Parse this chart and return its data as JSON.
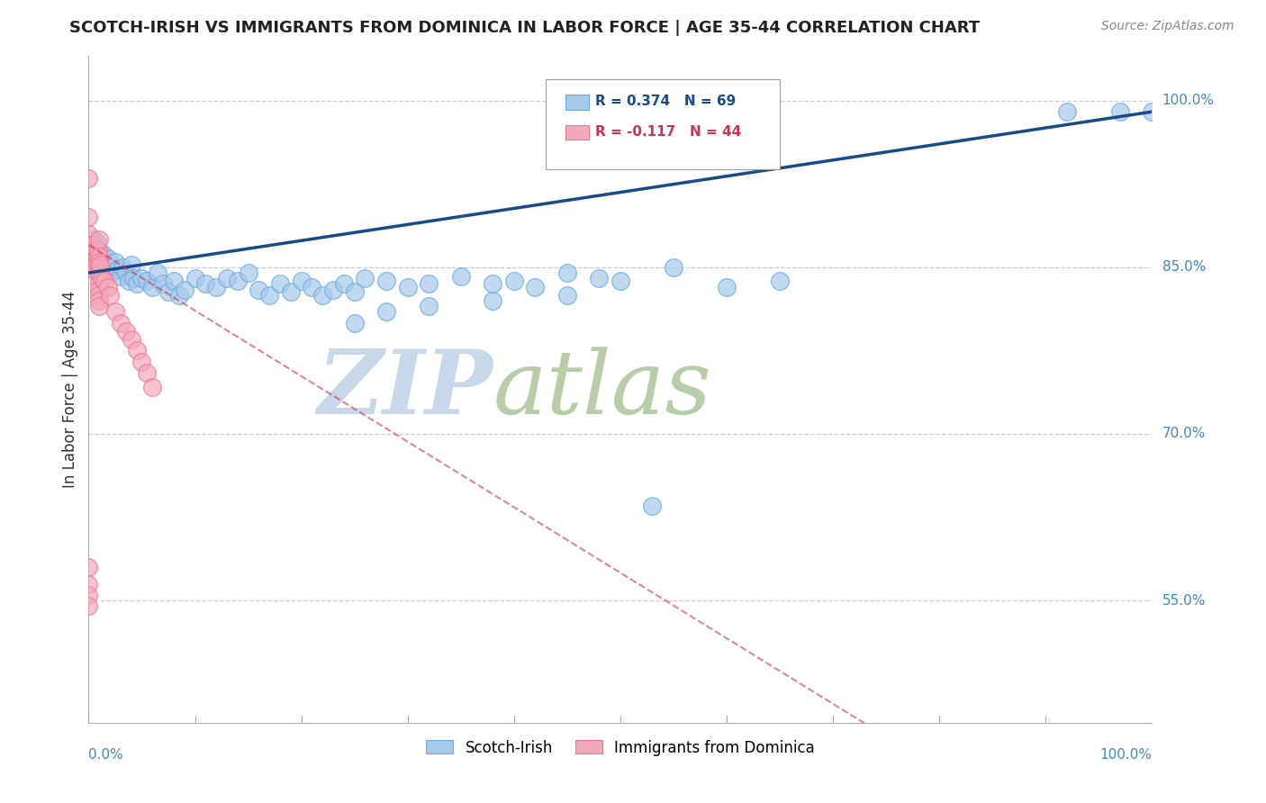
{
  "title": "SCOTCH-IRISH VS IMMIGRANTS FROM DOMINICA IN LABOR FORCE | AGE 35-44 CORRELATION CHART",
  "source": "Source: ZipAtlas.com",
  "ylabel": "In Labor Force | Age 35-44",
  "legend_blue_r": "R = 0.374",
  "legend_blue_n": "N = 69",
  "legend_pink_r": "R = -0.117",
  "legend_pink_n": "N = 44",
  "blue_color": "#a8c8e8",
  "blue_edge": "#6aabdb",
  "pink_color": "#f4a8bc",
  "pink_edge": "#e87898",
  "line_blue_color": "#1a4a8a",
  "line_pink_color": "#cc3355",
  "watermark_zip_color": "#c8d8e8",
  "watermark_atlas_color": "#b8ccaa",
  "grid_color": "#cccccc",
  "right_label_color": "#4488bb",
  "title_color": "#222222",
  "source_color": "#888888",
  "blue_x": [
    0.003,
    0.005,
    0.007,
    0.008,
    0.009,
    0.01,
    0.012,
    0.013,
    0.015,
    0.018,
    0.02,
    0.022,
    0.025,
    0.028,
    0.03,
    0.032,
    0.035,
    0.038,
    0.04,
    0.042,
    0.045,
    0.05,
    0.055,
    0.06,
    0.065,
    0.07,
    0.075,
    0.08,
    0.085,
    0.09,
    0.1,
    0.11,
    0.12,
    0.13,
    0.14,
    0.15,
    0.16,
    0.17,
    0.18,
    0.19,
    0.2,
    0.21,
    0.22,
    0.23,
    0.24,
    0.25,
    0.26,
    0.28,
    0.3,
    0.32,
    0.35,
    0.38,
    0.4,
    0.42,
    0.45,
    0.48,
    0.5,
    0.55,
    0.6,
    0.65,
    0.25,
    0.28,
    0.32,
    0.38,
    0.45,
    0.53,
    0.92,
    0.97,
    1.0
  ],
  "blue_y": [
    0.87,
    0.875,
    0.868,
    0.872,
    0.865,
    0.86,
    0.858,
    0.862,
    0.855,
    0.858,
    0.85,
    0.845,
    0.855,
    0.848,
    0.842,
    0.85,
    0.845,
    0.838,
    0.852,
    0.84,
    0.835,
    0.84,
    0.838,
    0.832,
    0.845,
    0.835,
    0.828,
    0.838,
    0.825,
    0.83,
    0.84,
    0.835,
    0.832,
    0.84,
    0.838,
    0.845,
    0.83,
    0.825,
    0.835,
    0.828,
    0.838,
    0.832,
    0.825,
    0.83,
    0.835,
    0.828,
    0.84,
    0.838,
    0.832,
    0.835,
    0.842,
    0.835,
    0.838,
    0.832,
    0.845,
    0.84,
    0.838,
    0.85,
    0.832,
    0.838,
    0.8,
    0.81,
    0.815,
    0.82,
    0.825,
    0.635,
    0.99,
    0.99,
    0.99
  ],
  "pink_x": [
    0.0,
    0.0,
    0.0,
    0.0,
    0.0,
    0.002,
    0.003,
    0.004,
    0.005,
    0.005,
    0.005,
    0.006,
    0.007,
    0.008,
    0.008,
    0.009,
    0.01,
    0.01,
    0.01,
    0.01,
    0.01,
    0.01,
    0.01,
    0.01,
    0.01,
    0.01,
    0.01,
    0.011,
    0.012,
    0.015,
    0.018,
    0.02,
    0.025,
    0.03,
    0.035,
    0.04,
    0.045,
    0.05,
    0.055,
    0.06,
    0.0,
    0.0,
    0.0,
    0.0
  ],
  "pink_y": [
    0.93,
    0.895,
    0.88,
    0.87,
    0.86,
    0.865,
    0.87,
    0.858,
    0.862,
    0.855,
    0.848,
    0.865,
    0.855,
    0.862,
    0.858,
    0.865,
    0.875,
    0.86,
    0.855,
    0.85,
    0.845,
    0.84,
    0.835,
    0.83,
    0.825,
    0.82,
    0.815,
    0.852,
    0.84,
    0.838,
    0.832,
    0.825,
    0.81,
    0.8,
    0.792,
    0.785,
    0.775,
    0.765,
    0.755,
    0.742,
    0.58,
    0.565,
    0.555,
    0.545
  ]
}
